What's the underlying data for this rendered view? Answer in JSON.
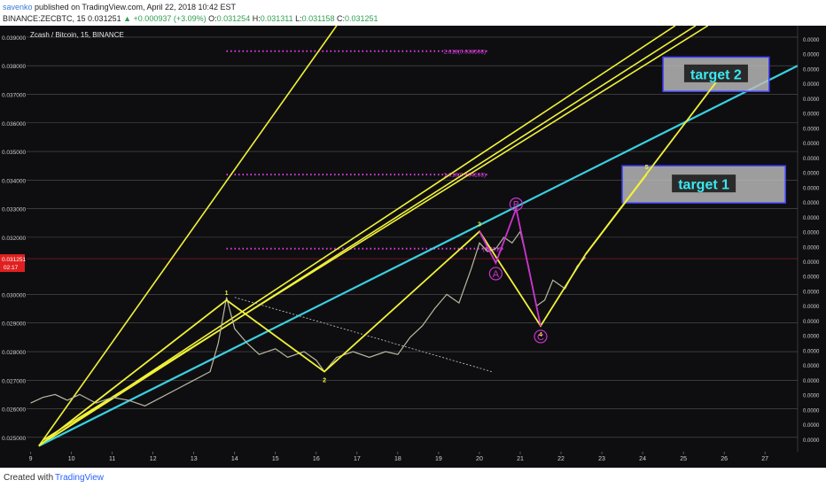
{
  "header": {
    "user": "savenko",
    "published_text": "published on TradingView.com, April 22, 2018 10:42 EST",
    "symbol": "BINANCE:ZECBTC, 15",
    "price": "0.031251",
    "change": "+0.000937 (+3.09%)",
    "ohlc": [
      {
        "k": "O:",
        "v": "0.031254"
      },
      {
        "k": "H:",
        "v": "0.031311"
      },
      {
        "k": "L:",
        "v": "0.031158"
      },
      {
        "k": "C:",
        "v": "0.031251"
      }
    ]
  },
  "footer": {
    "created_with": "Created with",
    "brand": "TradingView"
  },
  "chart_data": {
    "type": "line",
    "title": "Zcash / Bitcoin, 15, BINANCE",
    "ylim": [
      0.0245,
      0.0394
    ],
    "xlim": [
      8.9,
      27.8
    ],
    "y_ticks": [
      "0.025000",
      "0.026000",
      "0.027000",
      "0.028000",
      "0.029000",
      "0.030000",
      "0.032000",
      "0.033000",
      "0.034000",
      "0.035000",
      "0.036000",
      "0.037000",
      "0.038000",
      "0.039000"
    ],
    "x_ticks": [
      "9",
      "10",
      "11",
      "12",
      "13",
      "14",
      "15",
      "16",
      "17",
      "18",
      "19",
      "20",
      "21",
      "22",
      "23",
      "24",
      "25",
      "26",
      "27"
    ],
    "right_axis_labels": [
      "0.0000",
      "0.0000",
      "0.0000",
      "0.0000",
      "0.0000",
      "0.0000",
      "0.0000",
      "0.0000",
      "0.0000",
      "0.0000",
      "0.0000",
      "0.0000",
      "0.0000",
      "0.0000",
      "0.0000",
      "0.0000",
      "0.0000",
      "0.0000",
      "0.0000",
      "0.0000",
      "0.0000",
      "0.0000",
      "0.0000",
      "0.0000",
      "0.0000",
      "0.0000",
      "0.0000",
      "0.0000"
    ],
    "current_price_label": "0.031251",
    "countdown_label": "02:17",
    "price_series": [
      [
        9.0,
        0.0262
      ],
      [
        9.3,
        0.0264
      ],
      [
        9.6,
        0.0265
      ],
      [
        9.9,
        0.0263
      ],
      [
        10.2,
        0.0265
      ],
      [
        10.6,
        0.0262
      ],
      [
        11.0,
        0.0264
      ],
      [
        11.4,
        0.0263
      ],
      [
        11.8,
        0.0261
      ],
      [
        12.2,
        0.0264
      ],
      [
        12.6,
        0.0267
      ],
      [
        13.0,
        0.027
      ],
      [
        13.4,
        0.0273
      ],
      [
        13.6,
        0.0283
      ],
      [
        13.8,
        0.0299
      ],
      [
        14.0,
        0.0288
      ],
      [
        14.3,
        0.0283
      ],
      [
        14.6,
        0.0279
      ],
      [
        15.0,
        0.0281
      ],
      [
        15.3,
        0.0278
      ],
      [
        15.7,
        0.028
      ],
      [
        16.0,
        0.0277
      ],
      [
        16.2,
        0.0273
      ],
      [
        16.5,
        0.0278
      ],
      [
        16.9,
        0.028
      ],
      [
        17.3,
        0.0278
      ],
      [
        17.7,
        0.028
      ],
      [
        18.0,
        0.0279
      ],
      [
        18.3,
        0.0285
      ],
      [
        18.6,
        0.0289
      ],
      [
        18.9,
        0.0295
      ],
      [
        19.2,
        0.03
      ],
      [
        19.5,
        0.0297
      ],
      [
        19.8,
        0.0309
      ],
      [
        20.0,
        0.0318
      ],
      [
        20.2,
        0.0315
      ],
      [
        20.4,
        0.0316
      ],
      [
        20.6,
        0.032
      ],
      [
        20.8,
        0.0318
      ],
      [
        21.0,
        0.0322
      ],
      [
        21.2,
        0.031
      ],
      [
        21.4,
        0.0296
      ],
      [
        21.6,
        0.0298
      ],
      [
        21.8,
        0.0305
      ],
      [
        22.1,
        0.0302
      ],
      [
        22.4,
        0.031
      ],
      [
        22.6,
        0.0313
      ]
    ],
    "zigzag_waves": {
      "points": [
        [
          9.2,
          0.0247
        ],
        [
          13.8,
          0.0298
        ],
        [
          16.2,
          0.0273
        ],
        [
          20.0,
          0.0322
        ],
        [
          21.5,
          0.0289
        ],
        [
          22.6,
          0.0314
        ]
      ],
      "labels": [
        "1",
        "2",
        "3",
        "4",
        "5"
      ],
      "wave5_target": [
        24.1,
        0.0342
      ]
    },
    "abc_correction": {
      "points": [
        [
          20.0,
          0.0322
        ],
        [
          20.4,
          0.0311
        ],
        [
          20.9,
          0.033
        ],
        [
          21.5,
          0.0289
        ]
      ],
      "labels": [
        "A",
        "B",
        "C"
      ]
    },
    "fibonacci_levels": [
      {
        "label": "2.618(0.038508)",
        "value": 0.038508,
        "x_from": 13.8,
        "x_to": 20.2
      },
      {
        "label": "1.618(0.034193)",
        "value": 0.034193,
        "x_from": 13.8,
        "x_to": 20.2
      },
      {
        "label": "(0.0315",
        "value": 0.0316,
        "x_from": 13.8,
        "x_to": 20.6
      }
    ],
    "trend_line_cyan": [
      [
        9.2,
        0.0247
      ],
      [
        27.8,
        0.038
      ]
    ],
    "channel_lines": [
      [
        [
          9.2,
          0.0247
        ],
        [
          16.5,
          0.0394
        ]
      ],
      [
        [
          9.2,
          0.0247
        ],
        [
          24.8,
          0.0394
        ]
      ],
      [
        [
          9.2,
          0.0247
        ],
        [
          25.3,
          0.0394
        ]
      ],
      [
        [
          9.3,
          0.0249
        ],
        [
          25.6,
          0.0394
        ]
      ]
    ],
    "dotted_downtrend": [
      [
        14.0,
        0.0299
      ],
      [
        20.3,
        0.0273
      ]
    ],
    "final_projection": [
      [
        22.6,
        0.0314
      ],
      [
        26.0,
        0.0378
      ]
    ],
    "targets": [
      {
        "label": "target 1",
        "x_from": 23.5,
        "x_to": 27.5,
        "y_from": 0.0332,
        "y_to": 0.0345
      },
      {
        "label": "target 2",
        "x_from": 24.5,
        "x_to": 27.1,
        "y_from": 0.0371,
        "y_to": 0.0383
      }
    ],
    "colors": {
      "background": "#0e0e11",
      "grid": "#555555",
      "price": "#b8b8a0",
      "zigzag": "#f2f238",
      "abc": "#cc33cc",
      "cyan": "#3ad0e0",
      "fib": "#e040e0",
      "target_text": "#3ae8f0",
      "target_fill": "#bdbdbd",
      "target_border": "#4040ff",
      "price_label": "#e02020"
    }
  }
}
